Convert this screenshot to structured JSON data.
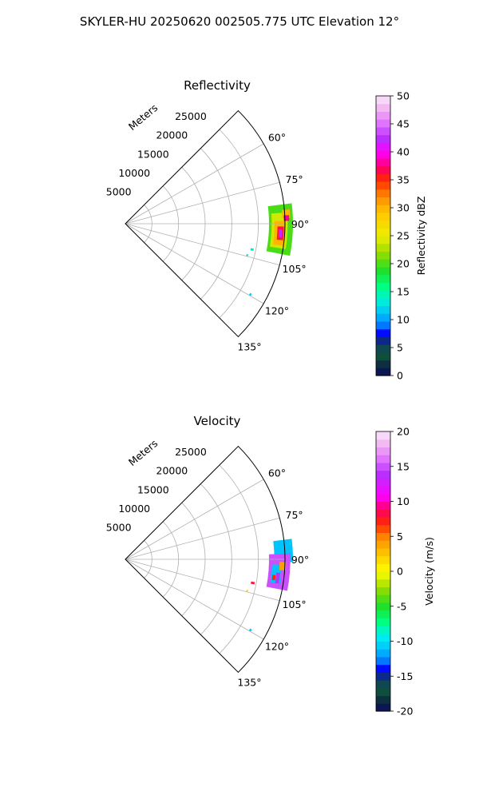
{
  "figure_title": "SKYLER-HU  20250620  002505.775 UTC Elevation 12°",
  "range_axis_label": "Meters",
  "chart_data": [
    {
      "type": "heatmap",
      "projection": "polar-sector",
      "title": "Reflectivity",
      "azimuth_range_deg": [
        45,
        135
      ],
      "azimuth_ticks": [
        "60°",
        "75°",
        "90°",
        "105°",
        "120°",
        "135°"
      ],
      "azimuth_tick_values": [
        60,
        75,
        90,
        105,
        120,
        135
      ],
      "range_lim": [
        0,
        30000
      ],
      "range_ticks": [
        "5000",
        "10000",
        "15000",
        "20000",
        "25000"
      ],
      "range_tick_values": [
        5000,
        10000,
        15000,
        20000,
        25000
      ],
      "grid": true,
      "colorbar": {
        "label": "Reflectivity dBZ",
        "min": 0,
        "max": 50,
        "ticks": [
          "0",
          "5",
          "10",
          "15",
          "20",
          "25",
          "30",
          "35",
          "40",
          "45",
          "50"
        ]
      },
      "echoes": [
        {
          "az": [
            83,
            101
          ],
          "range": [
            27000,
            31500
          ],
          "level": 20
        },
        {
          "az": [
            86,
            99
          ],
          "range": [
            27500,
            30500
          ],
          "level": 24
        },
        {
          "az": [
            89,
            98
          ],
          "range": [
            28000,
            30000
          ],
          "level": 30
        },
        {
          "az": [
            91,
            96
          ],
          "range": [
            28600,
            29800
          ],
          "level": 36
        },
        {
          "az": [
            92,
            95
          ],
          "range": [
            28900,
            29500
          ],
          "level": 42
        },
        {
          "az": [
            85,
            88
          ],
          "range": [
            29500,
            31000
          ],
          "level": 30
        },
        {
          "az": [
            87,
            89
          ],
          "range": [
            29800,
            30800
          ],
          "level": 38
        },
        {
          "az": [
            101,
            102
          ],
          "range": [
            24000,
            24600
          ],
          "level": 13
        },
        {
          "az": [
            104,
            105
          ],
          "range": [
            23500,
            23800
          ],
          "level": 12
        },
        {
          "az": [
            119,
            120
          ],
          "range": [
            26800,
            27200
          ],
          "level": 12
        }
      ]
    },
    {
      "type": "heatmap",
      "projection": "polar-sector",
      "title": "Velocity",
      "azimuth_range_deg": [
        45,
        135
      ],
      "azimuth_ticks": [
        "60°",
        "75°",
        "90°",
        "105°",
        "120°",
        "135°"
      ],
      "azimuth_tick_values": [
        60,
        75,
        90,
        105,
        120,
        135
      ],
      "range_lim": [
        0,
        30000
      ],
      "range_ticks": [
        "5000",
        "10000",
        "15000",
        "20000",
        "25000"
      ],
      "range_tick_values": [
        5000,
        10000,
        15000,
        20000,
        25000
      ],
      "grid": true,
      "colorbar": {
        "label": "Velocity (m/s)",
        "min": -20,
        "max": 20,
        "ticks": [
          "-20",
          "-15",
          "-10",
          "-5",
          "0",
          "5",
          "10",
          "15",
          "20"
        ]
      },
      "echoes": [
        {
          "az": [
            83,
            91
          ],
          "range": [
            28000,
            31500
          ],
          "level": -11
        },
        {
          "az": [
            88,
            101
          ],
          "range": [
            27000,
            31000
          ],
          "level": 15
        },
        {
          "az": [
            92,
            99
          ],
          "range": [
            27600,
            29400
          ],
          "level": -11
        },
        {
          "az": [
            95,
            99
          ],
          "range": [
            28500,
            29200
          ],
          "level": 14
        },
        {
          "az": [
            91,
            94
          ],
          "range": [
            29000,
            30200
          ],
          "level": 4
        },
        {
          "az": [
            96,
            98
          ],
          "range": [
            27800,
            28400
          ],
          "level": 7
        },
        {
          "az": [
            100,
            101
          ],
          "range": [
            24000,
            24700
          ],
          "level": 8
        },
        {
          "az": [
            104,
            105
          ],
          "range": [
            23500,
            23800
          ],
          "level": 2
        },
        {
          "az": [
            119,
            120
          ],
          "range": [
            26800,
            27200
          ],
          "level": -11
        }
      ]
    }
  ]
}
